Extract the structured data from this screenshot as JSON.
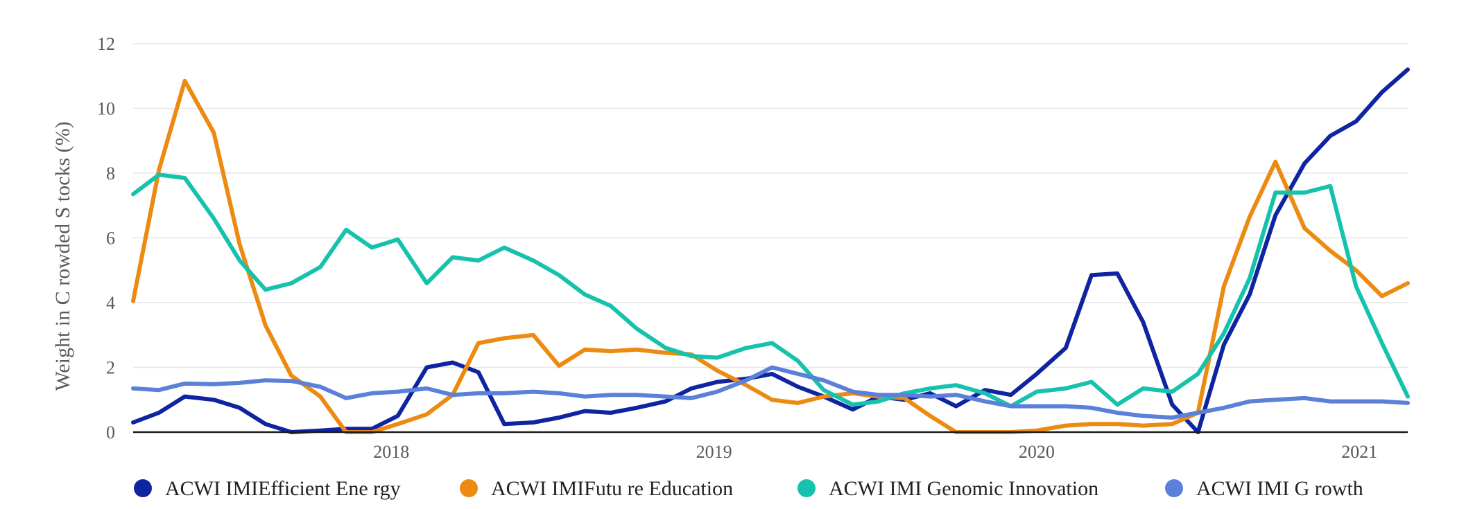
{
  "chart_data": {
    "type": "line",
    "title": "",
    "xlabel": "",
    "ylabel": "Weight in C rowded S tocks (%)",
    "ylim": [
      0,
      12
    ],
    "yticks": [
      0,
      2,
      4,
      6,
      8,
      10,
      12
    ],
    "xlim": [
      2017.2,
      2021.15
    ],
    "xticks": [
      {
        "value": 2018,
        "label": "2018"
      },
      {
        "value": 2019,
        "label": "2019"
      },
      {
        "value": 2020,
        "label": "2020"
      },
      {
        "value": 2021,
        "label": "2021"
      }
    ],
    "legend_position": "bottom",
    "grid": true,
    "series": [
      {
        "name": "ACWI IMIEfficient Ene rgy",
        "color": "#0f24a0",
        "x": [
          2017.2,
          2017.28,
          2017.36,
          2017.45,
          2017.53,
          2017.61,
          2017.69,
          2017.78,
          2017.86,
          2017.94,
          2018.02,
          2018.11,
          2018.19,
          2018.27,
          2018.35,
          2018.44,
          2018.52,
          2018.6,
          2018.68,
          2018.76,
          2018.85,
          2018.93,
          2019.01,
          2019.1,
          2019.18,
          2019.26,
          2019.34,
          2019.43,
          2019.51,
          2019.59,
          2019.67,
          2019.75,
          2019.84,
          2019.92,
          2020.0,
          2020.09,
          2020.17,
          2020.25,
          2020.33,
          2020.42,
          2020.5,
          2020.58,
          2020.66,
          2020.74,
          2020.83,
          2020.91,
          2020.99,
          2021.07,
          2021.15
        ],
        "values": [
          0.3,
          0.6,
          1.1,
          1.0,
          0.75,
          0.25,
          0.0,
          0.05,
          0.1,
          0.1,
          0.5,
          2.0,
          2.15,
          1.85,
          0.25,
          0.3,
          0.45,
          0.65,
          0.6,
          0.75,
          0.95,
          1.35,
          1.55,
          1.65,
          1.8,
          1.4,
          1.1,
          0.7,
          1.1,
          1.0,
          1.2,
          0.8,
          1.3,
          1.15,
          1.8,
          2.6,
          4.85,
          4.9,
          3.4,
          0.85,
          0.0,
          2.7,
          4.25,
          6.7,
          8.3,
          9.15,
          9.6,
          10.5,
          11.2
        ]
      },
      {
        "name": "ACWI IMIFutu re Education",
        "color": "#ec8a12",
        "x": [
          2017.2,
          2017.28,
          2017.36,
          2017.45,
          2017.53,
          2017.61,
          2017.69,
          2017.78,
          2017.86,
          2017.94,
          2018.02,
          2018.11,
          2018.19,
          2018.27,
          2018.35,
          2018.44,
          2018.52,
          2018.6,
          2018.68,
          2018.76,
          2018.85,
          2018.93,
          2019.01,
          2019.1,
          2019.18,
          2019.26,
          2019.34,
          2019.43,
          2019.51,
          2019.59,
          2019.67,
          2019.75,
          2019.84,
          2019.92,
          2020.0,
          2020.09,
          2020.17,
          2020.25,
          2020.33,
          2020.42,
          2020.5,
          2020.58,
          2020.66,
          2020.74,
          2020.83,
          2020.91,
          2020.99,
          2021.07,
          2021.15
        ],
        "values": [
          4.05,
          8.1,
          10.85,
          9.25,
          5.8,
          3.3,
          1.75,
          1.1,
          0.0,
          0.0,
          0.25,
          0.55,
          1.15,
          2.75,
          2.9,
          3.0,
          2.05,
          2.55,
          2.5,
          2.55,
          2.45,
          2.4,
          1.9,
          1.45,
          1.0,
          0.9,
          1.1,
          1.2,
          1.1,
          1.05,
          0.5,
          0.0,
          0.0,
          0.0,
          0.05,
          0.2,
          0.25,
          0.25,
          0.2,
          0.25,
          0.6,
          4.5,
          6.65,
          8.35,
          6.3,
          5.6,
          5.0,
          4.2,
          4.6
        ]
      },
      {
        "name": "ACWI IMI Genomic Innovation",
        "color": "#17c2ac",
        "x": [
          2017.2,
          2017.28,
          2017.36,
          2017.45,
          2017.53,
          2017.61,
          2017.69,
          2017.78,
          2017.86,
          2017.94,
          2018.02,
          2018.11,
          2018.19,
          2018.27,
          2018.35,
          2018.44,
          2018.52,
          2018.6,
          2018.68,
          2018.76,
          2018.85,
          2018.93,
          2019.01,
          2019.1,
          2019.18,
          2019.26,
          2019.34,
          2019.43,
          2019.51,
          2019.59,
          2019.67,
          2019.75,
          2019.84,
          2019.92,
          2020.0,
          2020.09,
          2020.17,
          2020.25,
          2020.33,
          2020.42,
          2020.5,
          2020.58,
          2020.66,
          2020.74,
          2020.83,
          2020.91,
          2020.99,
          2021.07,
          2021.15
        ],
        "values": [
          7.35,
          7.95,
          7.85,
          6.6,
          5.3,
          4.4,
          4.6,
          5.1,
          6.25,
          5.7,
          5.95,
          4.6,
          5.4,
          5.3,
          5.7,
          5.3,
          4.85,
          4.25,
          3.9,
          3.2,
          2.6,
          2.35,
          2.3,
          2.6,
          2.75,
          2.2,
          1.3,
          0.85,
          0.95,
          1.2,
          1.35,
          1.45,
          1.2,
          0.8,
          1.25,
          1.35,
          1.55,
          0.85,
          1.35,
          1.25,
          1.8,
          3.05,
          4.75,
          7.4,
          7.4,
          7.6,
          4.5,
          2.75,
          1.1
        ]
      },
      {
        "name": "ACWI IMI G rowth",
        "color": "#5b80d9",
        "x": [
          2017.2,
          2017.28,
          2017.36,
          2017.45,
          2017.53,
          2017.61,
          2017.69,
          2017.78,
          2017.86,
          2017.94,
          2018.02,
          2018.11,
          2018.19,
          2018.27,
          2018.35,
          2018.44,
          2018.52,
          2018.6,
          2018.68,
          2018.76,
          2018.85,
          2018.93,
          2019.01,
          2019.1,
          2019.18,
          2019.26,
          2019.34,
          2019.43,
          2019.51,
          2019.59,
          2019.67,
          2019.75,
          2019.84,
          2019.92,
          2020.0,
          2020.09,
          2020.17,
          2020.25,
          2020.33,
          2020.42,
          2020.5,
          2020.58,
          2020.66,
          2020.74,
          2020.83,
          2020.91,
          2020.99,
          2021.07,
          2021.15
        ],
        "values": [
          1.35,
          1.3,
          1.5,
          1.48,
          1.52,
          1.6,
          1.58,
          1.4,
          1.05,
          1.2,
          1.25,
          1.35,
          1.15,
          1.2,
          1.2,
          1.25,
          1.2,
          1.1,
          1.15,
          1.15,
          1.1,
          1.05,
          1.25,
          1.6,
          2.0,
          1.8,
          1.6,
          1.25,
          1.15,
          1.15,
          1.1,
          1.15,
          0.95,
          0.8,
          0.8,
          0.8,
          0.75,
          0.6,
          0.5,
          0.45,
          0.6,
          0.75,
          0.95,
          1.0,
          1.05,
          0.95,
          0.95,
          0.95,
          0.9
        ]
      }
    ]
  }
}
